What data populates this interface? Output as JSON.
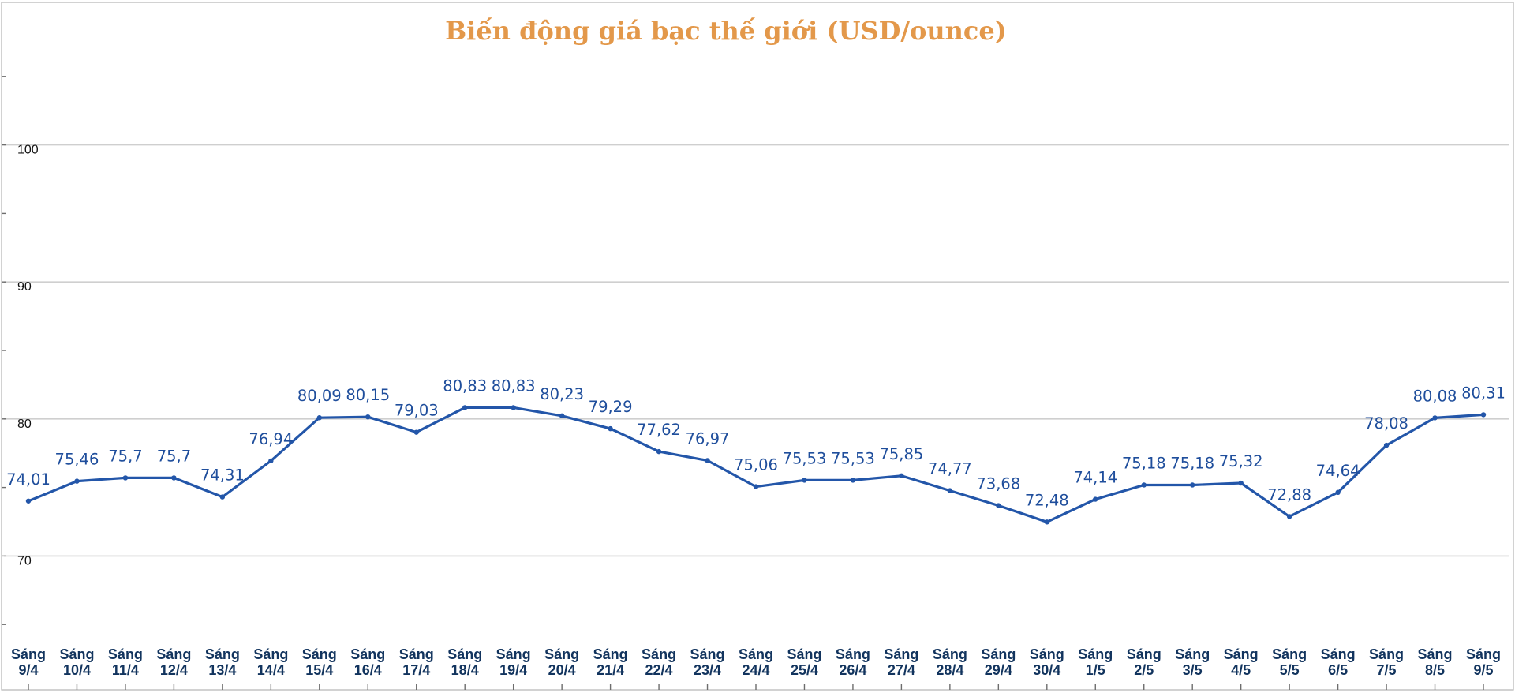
{
  "chart_data": {
    "type": "line",
    "title": "Biến động giá bạc thế giới (USD/ounce)",
    "xlabel": "",
    "ylabel": "",
    "ylim": [
      60,
      110
    ],
    "y_ticks": [
      70,
      80,
      90,
      100
    ],
    "grid": true,
    "legend": "none",
    "categories": [
      [
        "Sáng",
        "9/4"
      ],
      [
        "Sáng",
        "10/4"
      ],
      [
        "Sáng",
        "11/4"
      ],
      [
        "Sáng",
        "12/4"
      ],
      [
        "Sáng",
        "13/4"
      ],
      [
        "Sáng",
        "14/4"
      ],
      [
        "Sáng",
        "15/4"
      ],
      [
        "Sáng",
        "16/4"
      ],
      [
        "Sáng",
        "17/4"
      ],
      [
        "Sáng",
        "18/4"
      ],
      [
        "Sáng",
        "19/4"
      ],
      [
        "Sáng",
        "20/4"
      ],
      [
        "Sáng",
        "21/4"
      ],
      [
        "Sáng",
        "22/4"
      ],
      [
        "Sáng",
        "23/4"
      ],
      [
        "Sáng",
        "24/4"
      ],
      [
        "Sáng",
        "25/4"
      ],
      [
        "Sáng",
        "26/4"
      ],
      [
        "Sáng",
        "27/4"
      ],
      [
        "Sáng",
        "28/4"
      ],
      [
        "Sáng",
        "29/4"
      ],
      [
        "Sáng",
        "30/4"
      ],
      [
        "Sáng",
        "1/5"
      ],
      [
        "Sáng",
        "2/5"
      ],
      [
        "Sáng",
        "3/5"
      ],
      [
        "Sáng",
        "4/5"
      ],
      [
        "Sáng",
        "5/5"
      ],
      [
        "Sáng",
        "6/5"
      ],
      [
        "Sáng",
        "7/5"
      ],
      [
        "Sáng",
        "8/5"
      ],
      [
        "Sáng",
        "9/5"
      ]
    ],
    "series": [
      {
        "values": [
          74.01,
          75.46,
          75.7,
          75.7,
          74.31,
          76.94,
          80.09,
          80.15,
          79.03,
          80.83,
          80.83,
          80.23,
          79.29,
          77.62,
          76.97,
          75.06,
          75.53,
          75.53,
          75.85,
          74.77,
          73.68,
          72.48,
          74.14,
          75.18,
          75.18,
          75.32,
          72.88,
          74.64,
          78.08,
          80.08,
          80.31
        ],
        "labels": [
          "74,01",
          "75,46",
          "75,7",
          "75,7",
          "74,31",
          "76,94",
          "80,09",
          "80,15",
          "79,03",
          "80,83",
          "80,83",
          "80,23",
          "79,29",
          "77,62",
          "76,97",
          "75,06",
          "75,53",
          "75,53",
          "75,85",
          "74,77",
          "73,68",
          "72,48",
          "74,14",
          "75,18",
          "75,18",
          "75,32",
          "72,88",
          "74,64",
          "78,08",
          "80,08",
          "80,31"
        ],
        "color": "#2356a9"
      }
    ]
  },
  "colors": {
    "title": "#e3984a",
    "series": "#2356a9",
    "data_label": "#1f4e9c",
    "x_label": "#12345e",
    "grid": "#cfcfcf"
  }
}
